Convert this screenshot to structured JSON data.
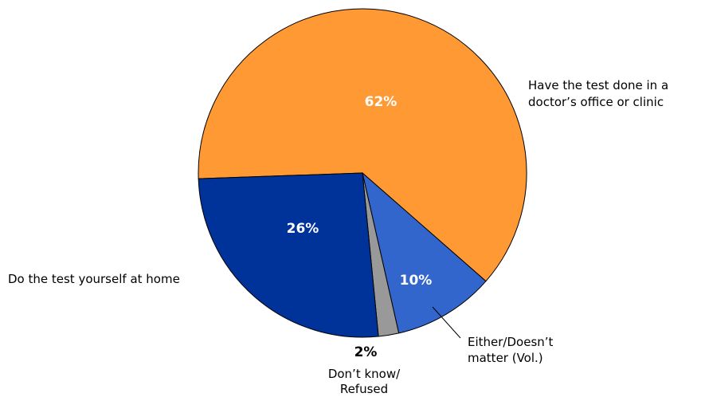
{
  "chart_data": {
    "type": "pie",
    "slices": [
      {
        "label": "Have the test done in a doctor’s office or clinic",
        "label_lines": [
          "Have the test done in a",
          "doctor’s office or clinic"
        ],
        "value": 62,
        "display": "62%",
        "color": "#FF9933"
      },
      {
        "label": "Either/Doesn’t matter (Vol.)",
        "label_lines": [
          "Either/Doesn’t",
          "matter (Vol.)"
        ],
        "value": 10,
        "display": "10%",
        "color": "#3366CC"
      },
      {
        "label": "Don’t know/ Refused",
        "label_lines": [
          "Don’t know/",
          "Refused"
        ],
        "value": 2,
        "display": "2%",
        "color": "#999999"
      },
      {
        "label": "Do the test yourself at home",
        "label_lines": [
          "Do the test yourself at home"
        ],
        "value": 26,
        "display": "26%",
        "color": "#003399"
      }
    ]
  }
}
